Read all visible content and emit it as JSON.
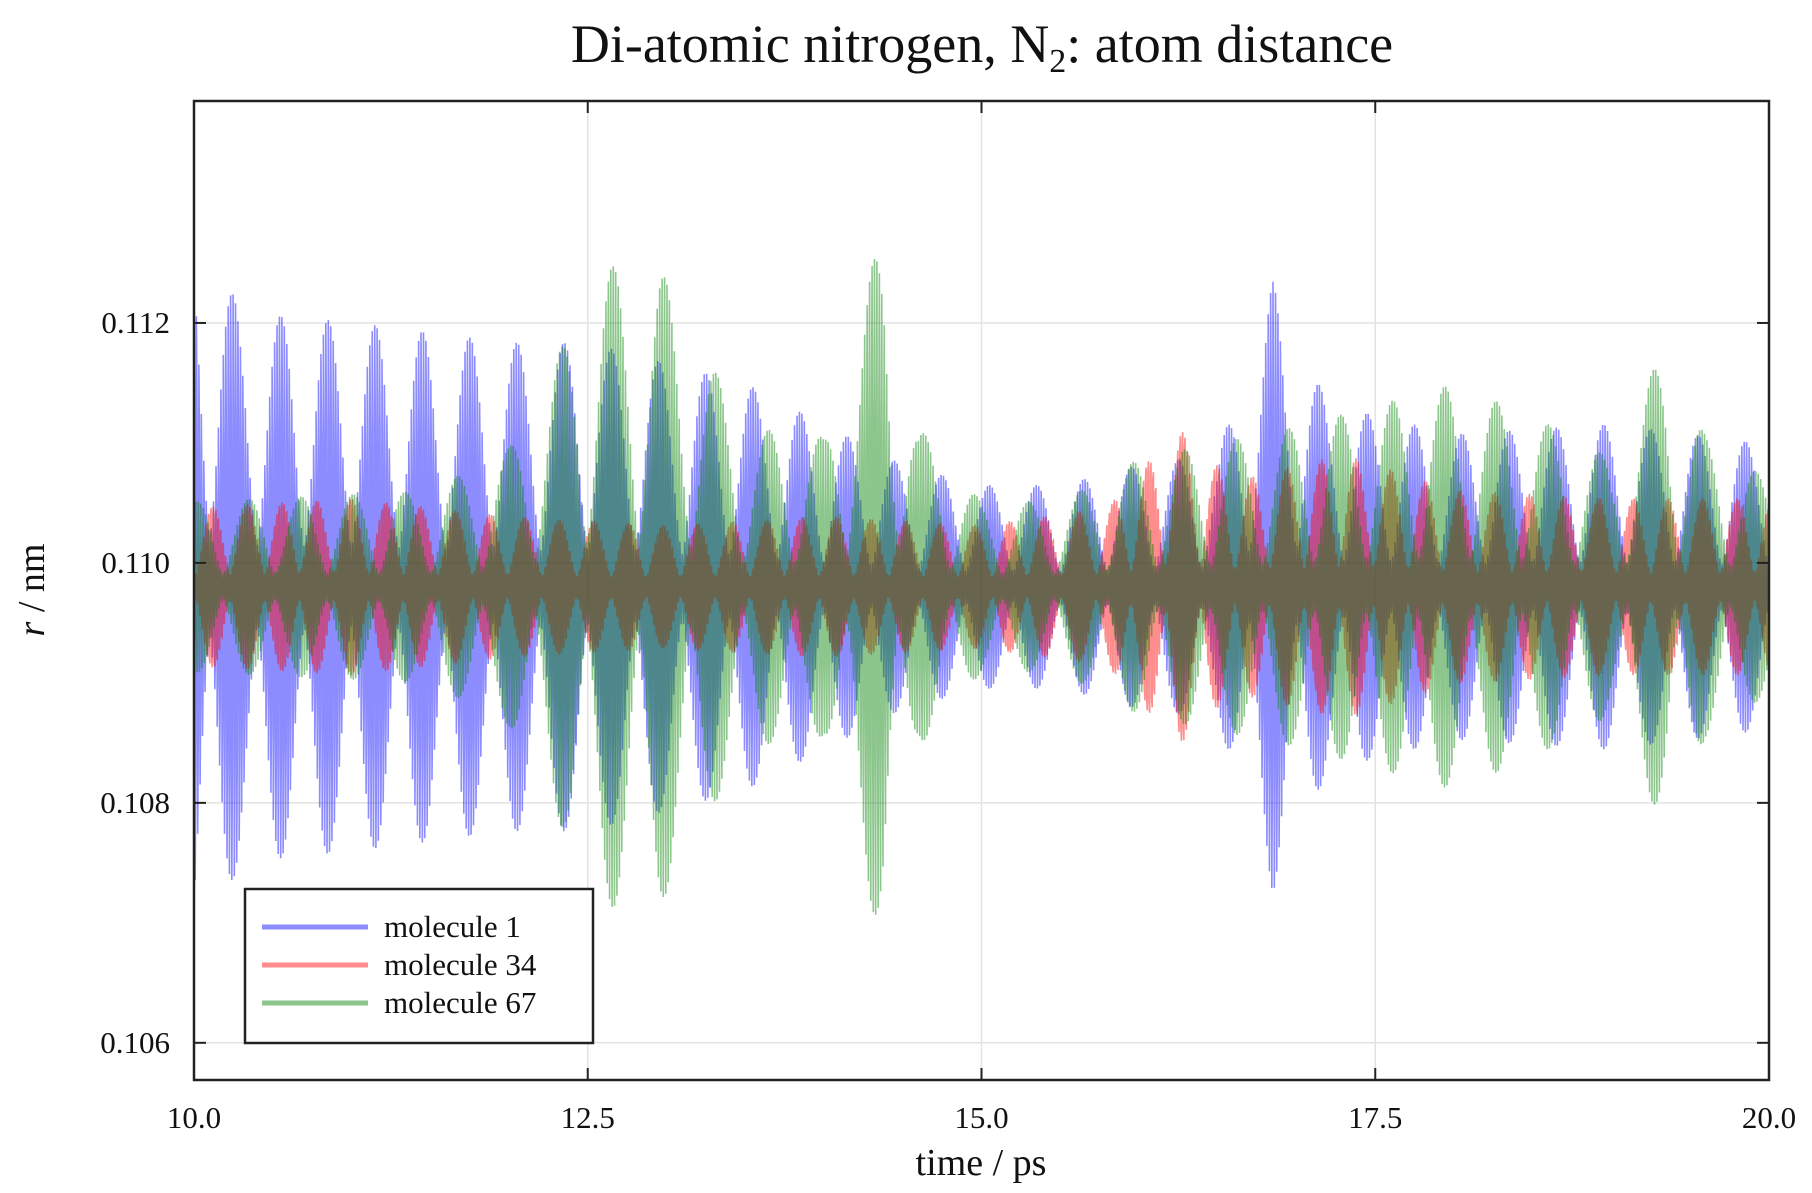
{
  "chart_data": {
    "type": "line",
    "title_main": "Di-atomic nitrogen, N",
    "title_sub": "2",
    "title_tail": ": atom distance",
    "xlabel": "time / ps",
    "ylabel_var": "r",
    "ylabel_unit": " / nm",
    "xlim": [
      10.0,
      20.0
    ],
    "ylim": [
      0.10569,
      0.11385
    ],
    "grid": true,
    "legend_position": "bottom-left",
    "xticks": [
      {
        "value": 10.0,
        "label": "10.0"
      },
      {
        "value": 12.5,
        "label": "12.5"
      },
      {
        "value": 15.0,
        "label": "15.0"
      },
      {
        "value": 17.5,
        "label": "17.5"
      },
      {
        "value": 20.0,
        "label": "20.0"
      }
    ],
    "yticks": [
      {
        "value": 0.106,
        "label": "0.106"
      },
      {
        "value": 0.108,
        "label": "0.108"
      },
      {
        "value": 0.11,
        "label": "0.110"
      },
      {
        "value": 0.112,
        "label": "0.112"
      }
    ],
    "mean_distance_nm": 0.1098,
    "vibration_period_ps": 0.0155,
    "series": [
      {
        "name": "molecule 1",
        "color": "#0000ff",
        "beat_period_ps": 0.3,
        "beat_phase_ps": 0.05,
        "envelope_amplitude_nm": [
          [
            10.0,
            0.0037
          ],
          [
            10.3,
            0.0027
          ],
          [
            11.0,
            0.0026
          ],
          [
            12.0,
            0.0024
          ],
          [
            12.5,
            0.0024
          ],
          [
            13.0,
            0.0022
          ],
          [
            13.5,
            0.002
          ],
          [
            14.0,
            0.0016
          ],
          [
            14.5,
            0.0012
          ],
          [
            15.0,
            0.001
          ],
          [
            15.5,
            0.001
          ],
          [
            16.0,
            0.0012
          ],
          [
            16.5,
            0.0013
          ],
          [
            16.85,
            0.003
          ],
          [
            17.2,
            0.0018
          ],
          [
            18.0,
            0.0015
          ],
          [
            19.0,
            0.0016
          ],
          [
            20.0,
            0.0014
          ]
        ]
      },
      {
        "name": "molecule 34",
        "color": "#ff0000",
        "beat_period_ps": 0.22,
        "beat_phase_ps": 0.0,
        "envelope_amplitude_nm": [
          [
            10.0,
            0.0009
          ],
          [
            11.0,
            0.001
          ],
          [
            12.0,
            0.0008
          ],
          [
            13.0,
            0.0007
          ],
          [
            14.0,
            0.0008
          ],
          [
            15.0,
            0.0007
          ],
          [
            15.8,
            0.0009
          ],
          [
            16.25,
            0.0018
          ],
          [
            16.6,
            0.0012
          ],
          [
            17.3,
            0.0015
          ],
          [
            18.0,
            0.0011
          ],
          [
            19.0,
            0.001
          ],
          [
            20.0,
            0.001
          ]
        ]
      },
      {
        "name": "molecule 67",
        "color": "#008000",
        "beat_period_ps": 0.33,
        "beat_phase_ps": 0.12,
        "envelope_amplitude_nm": [
          [
            10.0,
            0.0008
          ],
          [
            11.5,
            0.0009
          ],
          [
            12.0,
            0.0013
          ],
          [
            12.6,
            0.003
          ],
          [
            12.95,
            0.003
          ],
          [
            13.5,
            0.0015
          ],
          [
            14.0,
            0.0014
          ],
          [
            14.38,
            0.0034
          ],
          [
            14.6,
            0.0015
          ],
          [
            15.0,
            0.0008
          ],
          [
            15.5,
            0.0008
          ],
          [
            16.0,
            0.0012
          ],
          [
            17.0,
            0.0015
          ],
          [
            17.5,
            0.0017
          ],
          [
            18.0,
            0.0019
          ],
          [
            18.5,
            0.0016
          ],
          [
            19.0,
            0.0012
          ],
          [
            19.35,
            0.0023
          ],
          [
            19.6,
            0.0014
          ],
          [
            20.0,
            0.001
          ]
        ]
      }
    ]
  }
}
